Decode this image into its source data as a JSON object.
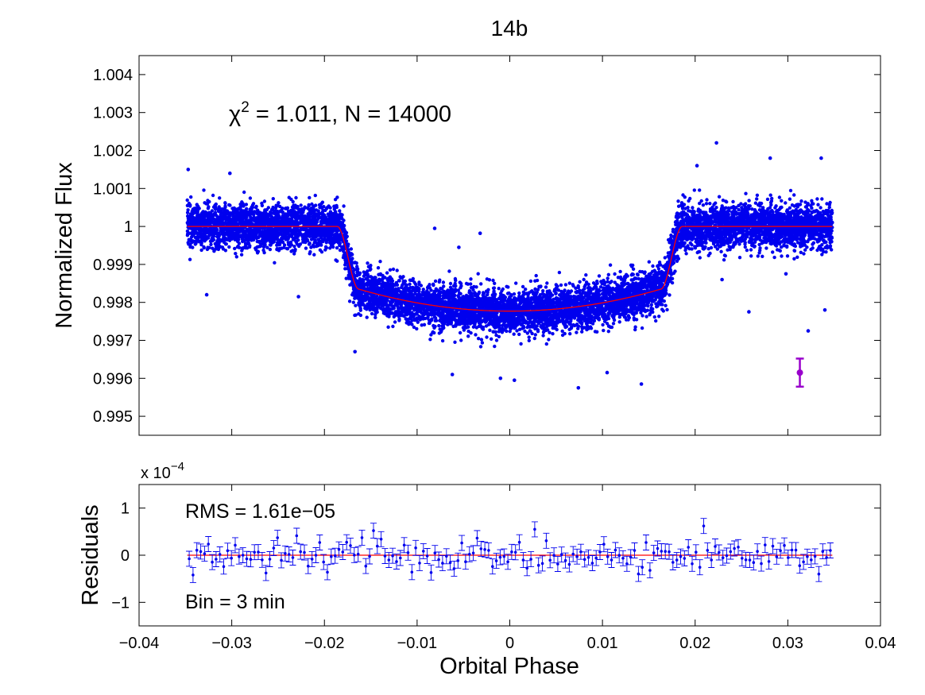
{
  "chart_data": [
    {
      "type": "scatter",
      "title": "14b",
      "xlabel": "",
      "ylabel": "Normalized Flux",
      "xlim": [
        -0.04,
        0.04
      ],
      "ylim": [
        0.9945,
        1.0045
      ],
      "xticks": [
        -0.04,
        -0.03,
        -0.02,
        -0.01,
        0,
        0.01,
        0.02,
        0.03,
        0.04
      ],
      "yticks": [
        "0.995",
        "0.996",
        "0.997",
        "0.998",
        "0.999",
        "1",
        "1.001",
        "1.002",
        "1.003",
        "1.004"
      ],
      "ytick_values": [
        0.995,
        0.996,
        0.997,
        0.998,
        0.999,
        1.0,
        1.001,
        1.002,
        1.003,
        1.004
      ],
      "annotation_chi_symbol": "χ",
      "annotation_chi_exp": "2",
      "annotation_chi_rest": " = 1.011, N = 14000",
      "n_points": 14000,
      "chi2": 1.011,
      "scatter_color": "#0000ee",
      "model_color": "#ff0000",
      "phase_range": [
        -0.0348,
        0.0348
      ],
      "model": {
        "baseline": 1.0,
        "ingress_start": -0.0186,
        "ingress_end": -0.0163,
        "egress_start": 0.0163,
        "egress_end": 0.0186,
        "depth_at_contact": 0.99835,
        "depth_center": 0.99777
      },
      "scatter_sigma": 0.00029,
      "outliers": [
        {
          "x": 0.0223,
          "y": 1.0022
        },
        {
          "x": 0.0281,
          "y": 1.0018
        },
        {
          "x": 0.0336,
          "y": 1.0018
        },
        {
          "x": -0.0302,
          "y": 1.0014
        },
        {
          "x": 0.0202,
          "y": 1.0016
        },
        {
          "x": -0.0347,
          "y": 1.0015
        },
        {
          "x": -0.0081,
          "y": 0.99995
        },
        {
          "x": -0.0032,
          "y": 0.99982
        },
        {
          "x": -0.0055,
          "y": 0.99945
        },
        {
          "x": 0.0074,
          "y": 0.99575
        },
        {
          "x": 0.0142,
          "y": 0.99585
        },
        {
          "x": -0.0167,
          "y": 0.9967
        },
        {
          "x": 0.0322,
          "y": 0.99725
        },
        {
          "x": 0.034,
          "y": 0.9978
        },
        {
          "x": -0.0327,
          "y": 0.9982
        },
        {
          "x": -0.0228,
          "y": 0.99815
        },
        {
          "x": 0.0258,
          "y": 0.99775
        },
        {
          "x": -0.001,
          "y": 0.996
        },
        {
          "x": 0.0005,
          "y": 0.99595
        },
        {
          "x": 0.0105,
          "y": 0.99615
        },
        {
          "x": -0.0062,
          "y": 0.9961
        },
        {
          "x": 0.0229,
          "y": 0.9986
        },
        {
          "x": 0.0182,
          "y": 0.99915
        },
        {
          "x": 0.0298,
          "y": 0.99875
        }
      ],
      "error_marker": {
        "x": 0.0313,
        "y": 0.99615,
        "err": 0.00037,
        "color": "#9900cc"
      }
    },
    {
      "type": "scatter",
      "title": "",
      "xlabel": "Orbital Phase",
      "ylabel": "Residuals",
      "scale_label": "x 10",
      "scale_exp": "−4",
      "xlim": [
        -0.04,
        0.04
      ],
      "ylim": [
        -1.5,
        1.5
      ],
      "xticks": [
        "−0.04",
        "−0.03",
        "−0.02",
        "−0.01",
        "0",
        "0.01",
        "0.02",
        "0.03",
        "0.04"
      ],
      "xtick_values": [
        -0.04,
        -0.03,
        -0.02,
        -0.01,
        0,
        0.01,
        0.02,
        0.03,
        0.04
      ],
      "yticks": [
        "−1",
        "0",
        "1"
      ],
      "ytick_values": [
        -1,
        0,
        1
      ],
      "annotation_rms": "RMS = 1.61e−05",
      "annotation_bin": "Bin = 3 min",
      "rms": 1.61e-05,
      "bin_minutes": 3,
      "n_bins": 168,
      "color": "#0000ee",
      "zero_line_color": "#ff0000",
      "errorbar": 0.16,
      "highlight_points": [
        {
          "x": 0.0211,
          "y": 0.62
        },
        {
          "x": -0.0148,
          "y": 0.52
        },
        {
          "x": -0.0343,
          "y": -0.42
        },
        {
          "x": 0.0334,
          "y": -0.4
        },
        {
          "x": 0.0029,
          "y": 0.55
        },
        {
          "x": -0.0252,
          "y": 0.37
        }
      ]
    }
  ]
}
